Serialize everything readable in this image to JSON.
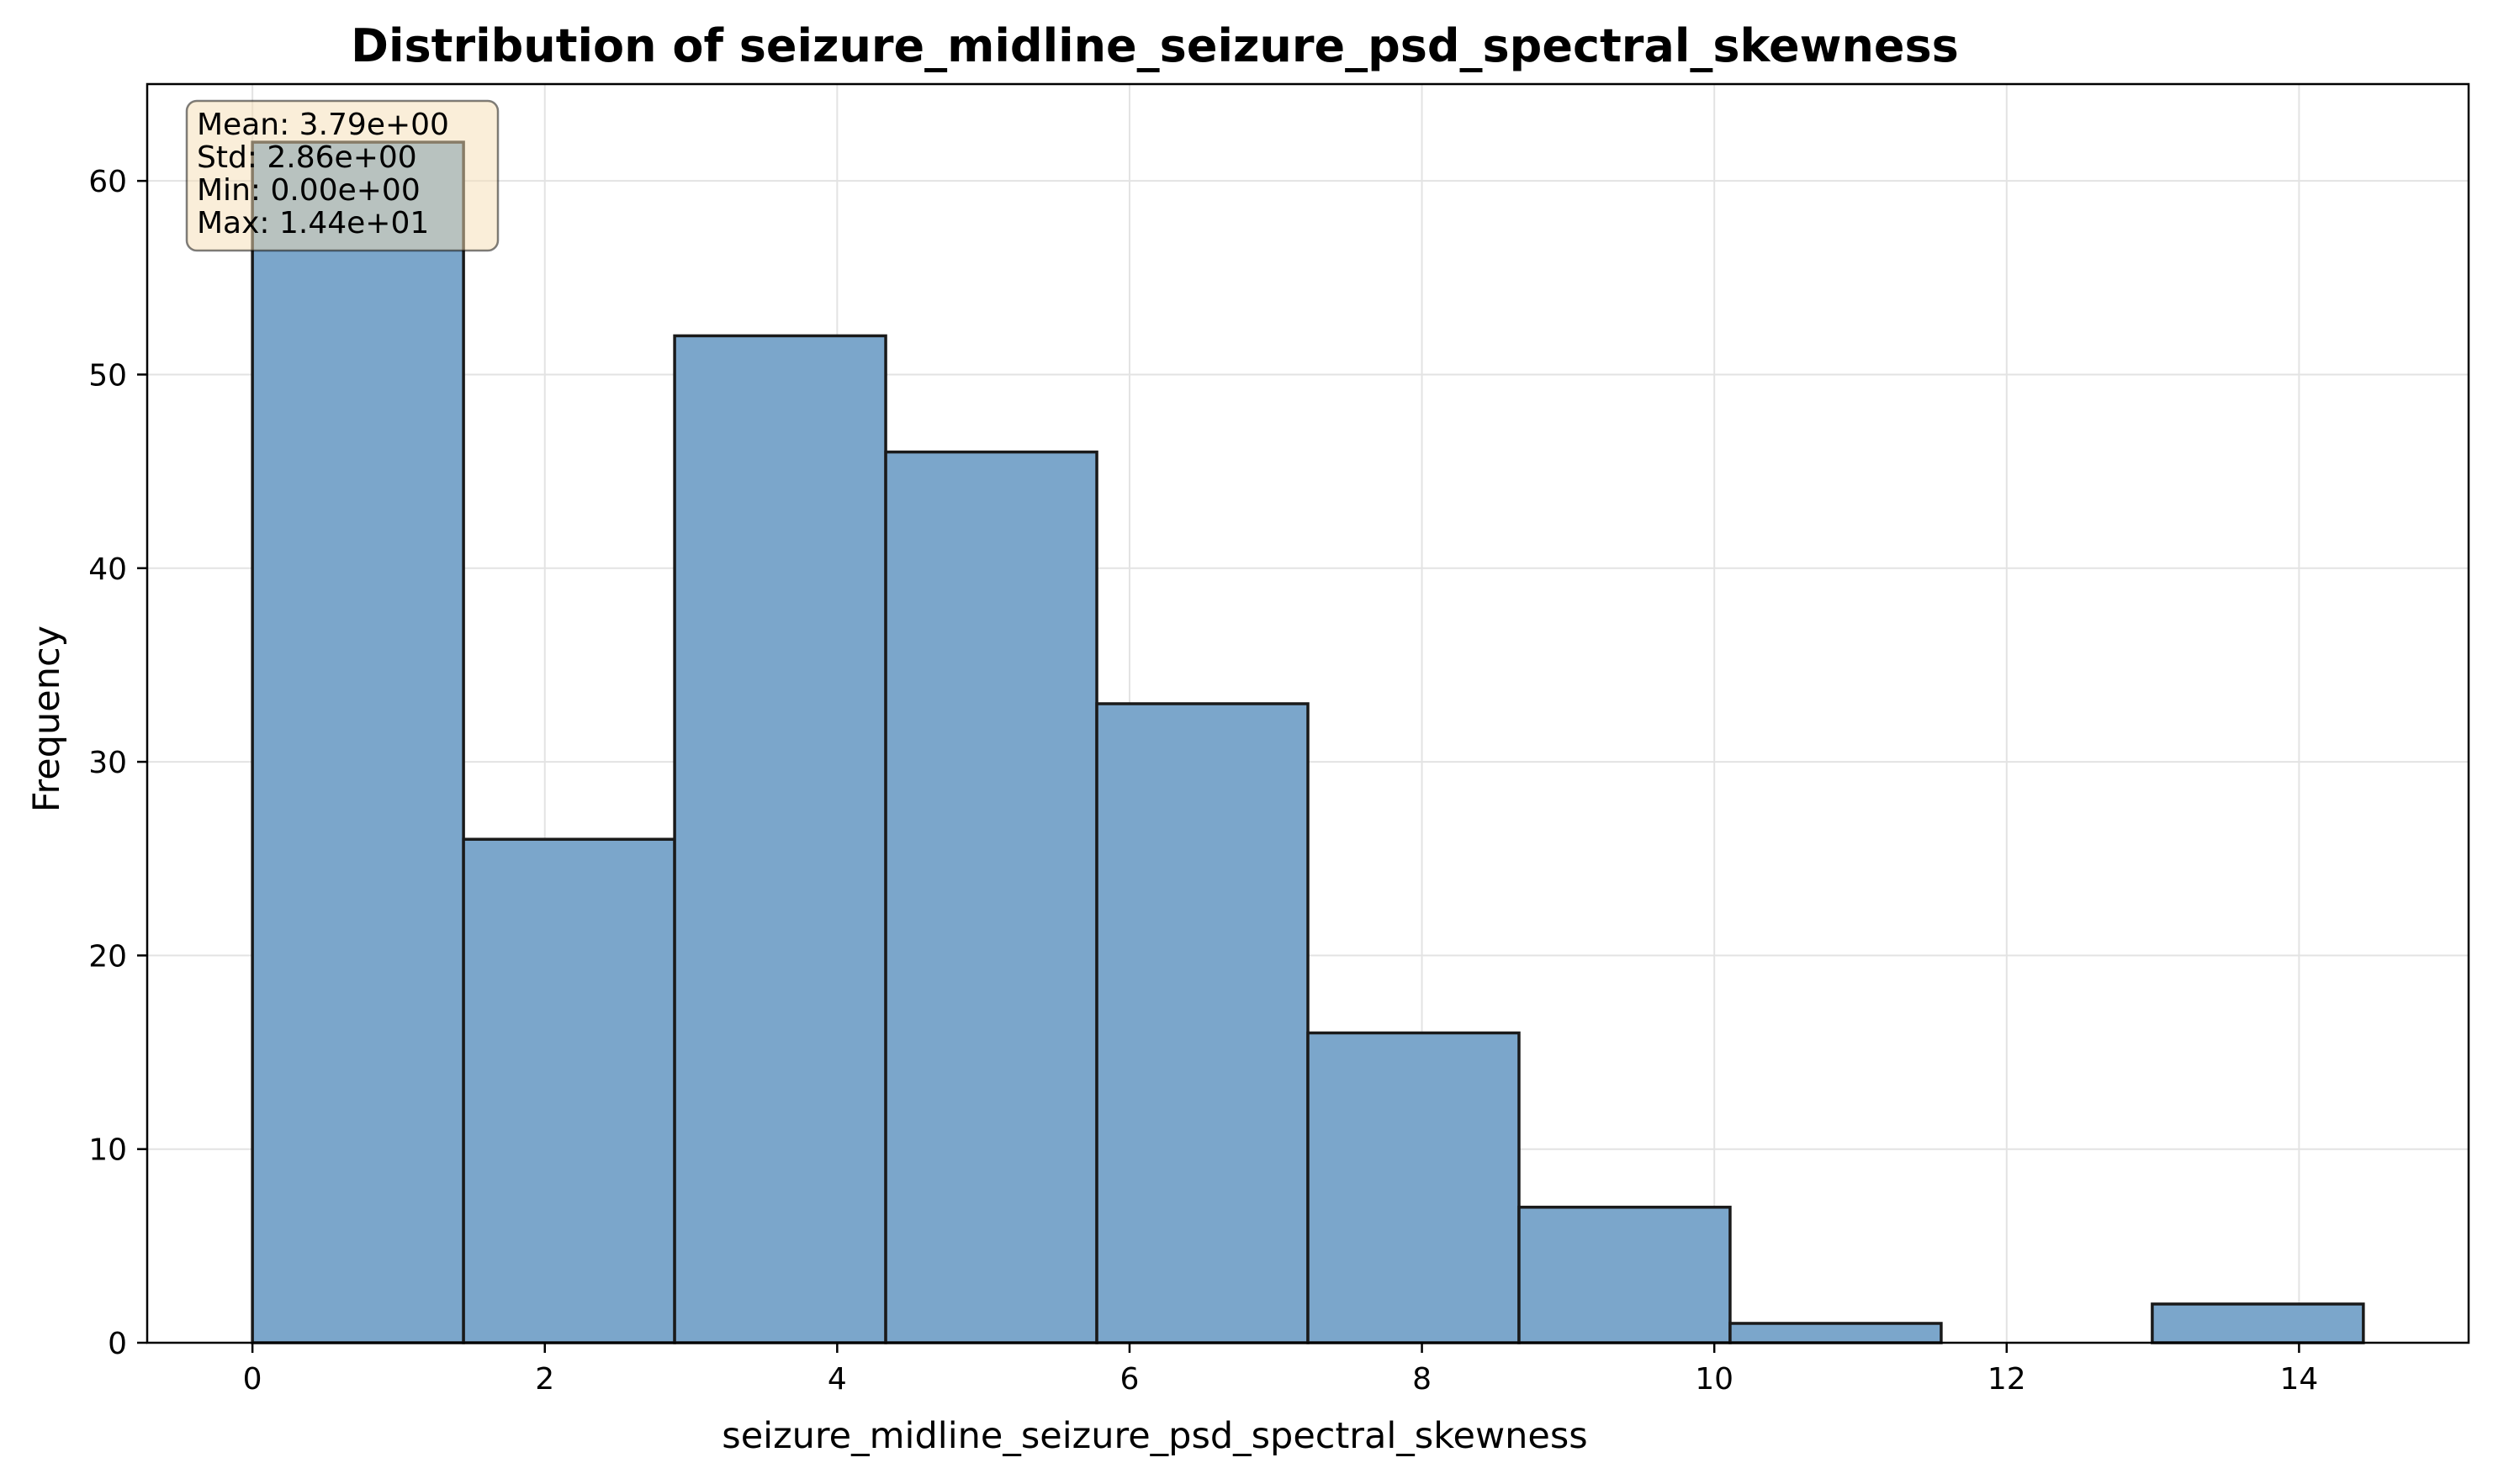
{
  "chart_data": {
    "type": "bar",
    "title": "Distribution of seizure_midline_seizure_psd_spectral_skewness",
    "xlabel": "seizure_midline_seizure_psd_spectral_skewness",
    "ylabel": "Frequency",
    "xlim": [
      -0.72,
      15.16
    ],
    "ylim": [
      0,
      65
    ],
    "bin_edges": [
      0.0,
      1.444,
      2.888,
      4.332,
      5.776,
      7.22,
      8.664,
      10.108,
      11.552,
      12.996,
      14.44
    ],
    "values": [
      62,
      26,
      52,
      46,
      33,
      16,
      7,
      1,
      0,
      2
    ],
    "x_ticks": [
      0,
      2,
      4,
      6,
      8,
      10,
      12,
      14
    ],
    "y_ticks": [
      0,
      10,
      20,
      30,
      40,
      50,
      60
    ],
    "grid": true,
    "bar_color": "#7ba6cb",
    "bar_edge_color": "#1a1a1a",
    "stats_box": {
      "lines": [
        "Mean: 3.79e+00",
        "Std: 2.86e+00",
        "Min: 0.00e+00",
        "Max: 1.44e+01"
      ],
      "background": "#f5deb3",
      "placement": "top-left"
    }
  }
}
